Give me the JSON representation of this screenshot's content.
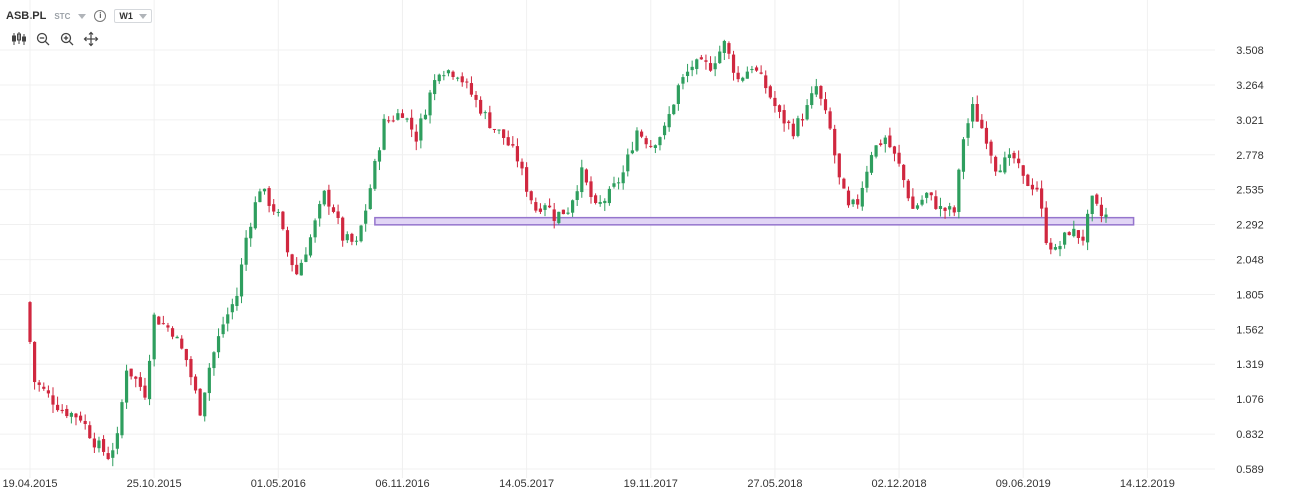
{
  "header": {
    "symbol": "ASB.PL",
    "exchange": "STC",
    "interval": "W1"
  },
  "colors": {
    "up": "#2e9e5e",
    "down": "#d0273f",
    "zone_stroke": "#9575cd",
    "zone_fill": "#e1d5f5",
    "grid": "#f0f0f0"
  },
  "icons": [
    "candles-settings-icon",
    "zoom-out-icon",
    "zoom-in-icon",
    "crosshair-icon"
  ],
  "chart_data": {
    "type": "candlestick",
    "y_ticks": [
      "3.508",
      "3.264",
      "3.021",
      "2.778",
      "2.535",
      "2.292",
      "2.048",
      "1.805",
      "1.562",
      "1.319",
      "1.076",
      "0.832",
      "0.589"
    ],
    "x_ticks": [
      "19.04.2015",
      "25.10.2015",
      "01.05.2016",
      "06.11.2016",
      "14.05.2017",
      "19.11.2017",
      "27.05.2018",
      "02.12.2018",
      "09.06.2019",
      "14.12.2019"
    ],
    "ylim": [
      0.589,
      3.508
    ],
    "grid": true,
    "zone": {
      "low": 2.29,
      "high": 2.34,
      "from_week": 75,
      "to_week": 240
    },
    "waypoints": [
      [
        0,
        1.75
      ],
      [
        2,
        1.2
      ],
      [
        8,
        1.0
      ],
      [
        12,
        0.95
      ],
      [
        15,
        0.78
      ],
      [
        18,
        0.68
      ],
      [
        20,
        0.8
      ],
      [
        22,
        1.3
      ],
      [
        26,
        1.12
      ],
      [
        28,
        1.65
      ],
      [
        32,
        1.55
      ],
      [
        35,
        1.35
      ],
      [
        38,
        1.0
      ],
      [
        40,
        1.3
      ],
      [
        43,
        1.6
      ],
      [
        46,
        1.8
      ],
      [
        48,
        2.2
      ],
      [
        51,
        2.55
      ],
      [
        55,
        2.35
      ],
      [
        57,
        2.1
      ],
      [
        59,
        1.95
      ],
      [
        62,
        2.2
      ],
      [
        65,
        2.5
      ],
      [
        67,
        2.4
      ],
      [
        69,
        2.2
      ],
      [
        72,
        2.15
      ],
      [
        74,
        2.4
      ],
      [
        76,
        2.7
      ],
      [
        78,
        3.0
      ],
      [
        82,
        3.08
      ],
      [
        85,
        2.9
      ],
      [
        88,
        3.2
      ],
      [
        90,
        3.38
      ],
      [
        94,
        3.35
      ],
      [
        98,
        3.15
      ],
      [
        101,
        3.0
      ],
      [
        104,
        2.9
      ],
      [
        107,
        2.75
      ],
      [
        109,
        2.55
      ],
      [
        111,
        2.4
      ],
      [
        113,
        2.45
      ],
      [
        115,
        2.35
      ],
      [
        118,
        2.4
      ],
      [
        121,
        2.65
      ],
      [
        124,
        2.4
      ],
      [
        127,
        2.5
      ],
      [
        130,
        2.65
      ],
      [
        133,
        2.95
      ],
      [
        136,
        2.85
      ],
      [
        139,
        2.95
      ],
      [
        142,
        3.25
      ],
      [
        145,
        3.4
      ],
      [
        149,
        3.4
      ],
      [
        152,
        3.55
      ],
      [
        155,
        3.3
      ],
      [
        158,
        3.4
      ],
      [
        161,
        3.25
      ],
      [
        164,
        3.05
      ],
      [
        167,
        2.95
      ],
      [
        170,
        3.1
      ],
      [
        172,
        3.25
      ],
      [
        175,
        2.95
      ],
      [
        177,
        2.6
      ],
      [
        179,
        2.4
      ],
      [
        181,
        2.45
      ],
      [
        184,
        2.8
      ],
      [
        187,
        2.9
      ],
      [
        190,
        2.7
      ],
      [
        193,
        2.4
      ],
      [
        196,
        2.5
      ],
      [
        199,
        2.4
      ],
      [
        202,
        2.38
      ],
      [
        204,
        2.9
      ],
      [
        206,
        3.1
      ],
      [
        209,
        2.9
      ],
      [
        211,
        2.7
      ],
      [
        215,
        2.75
      ],
      [
        217,
        2.6
      ],
      [
        220,
        2.55
      ],
      [
        222,
        2.2
      ],
      [
        224,
        2.1
      ],
      [
        227,
        2.25
      ],
      [
        230,
        2.2
      ],
      [
        232,
        2.45
      ],
      [
        234,
        2.35
      ]
    ],
    "price_pixel_calibration": {
      "price_a": 0.589,
      "px_a": 469,
      "price_b": 3.508,
      "px_b": 50
    },
    "time_pixel_calibration": {
      "week_a": 0,
      "px_a": 30,
      "week_b": 234,
      "px_b": 1106
    }
  }
}
